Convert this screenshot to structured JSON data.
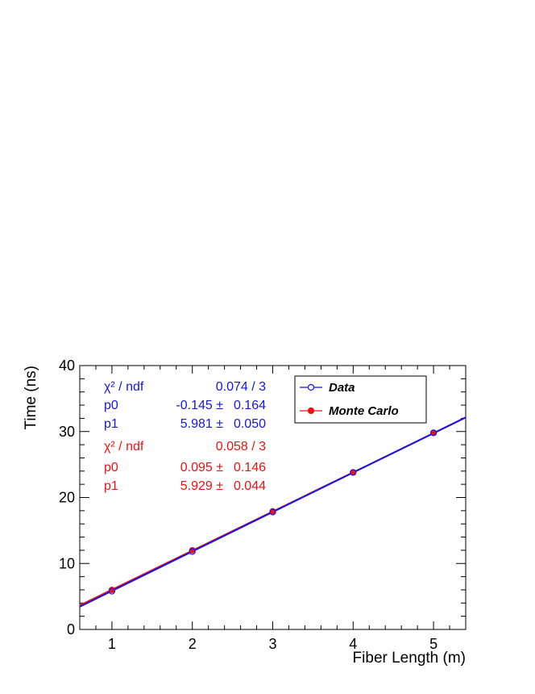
{
  "chart_data": {
    "type": "scatter",
    "xlabel": "Fiber Length (m)",
    "ylabel": "Time (ns)",
    "xlim": [
      0.6,
      5.4
    ],
    "ylim": [
      0,
      40
    ],
    "xticks": [
      1,
      2,
      3,
      4,
      5
    ],
    "yticks": [
      0,
      10,
      20,
      30,
      40
    ],
    "grid": false,
    "legend_position": "top-right",
    "series": [
      {
        "name": "Data",
        "color": "#1515e6",
        "marker": "open-circle",
        "x": [
          1,
          2,
          3,
          4,
          5
        ],
        "y": [
          5.8,
          11.8,
          17.8,
          23.8,
          29.8
        ],
        "fit": {
          "p0": -0.145,
          "p1": 5.981
        }
      },
      {
        "name": "Monte Carlo",
        "color": "#ee1111",
        "marker": "filled-circle",
        "x": [
          1,
          2,
          3,
          4,
          5
        ],
        "y": [
          6.0,
          12.0,
          17.9,
          23.8,
          29.8
        ],
        "fit": {
          "p0": 0.095,
          "p1": 5.929
        }
      }
    ],
    "stats": [
      {
        "color": "#1515e6",
        "rows": [
          {
            "label": "χ² / ndf",
            "value": "0.074 / 3",
            "error": ""
          },
          {
            "label": "p0",
            "value": "-0.145 ±",
            "error": "0.164"
          },
          {
            "label": "p1",
            "value": "5.981 ±",
            "error": "0.050"
          }
        ]
      },
      {
        "color": "#ee1111",
        "rows": [
          {
            "label": "χ² / ndf",
            "value": "0.058 / 3",
            "error": ""
          },
          {
            "label": "p0",
            "value": "0.095 ±",
            "error": "0.146"
          },
          {
            "label": "p1",
            "value": "5.929 ±",
            "error": "0.044"
          }
        ]
      }
    ]
  }
}
